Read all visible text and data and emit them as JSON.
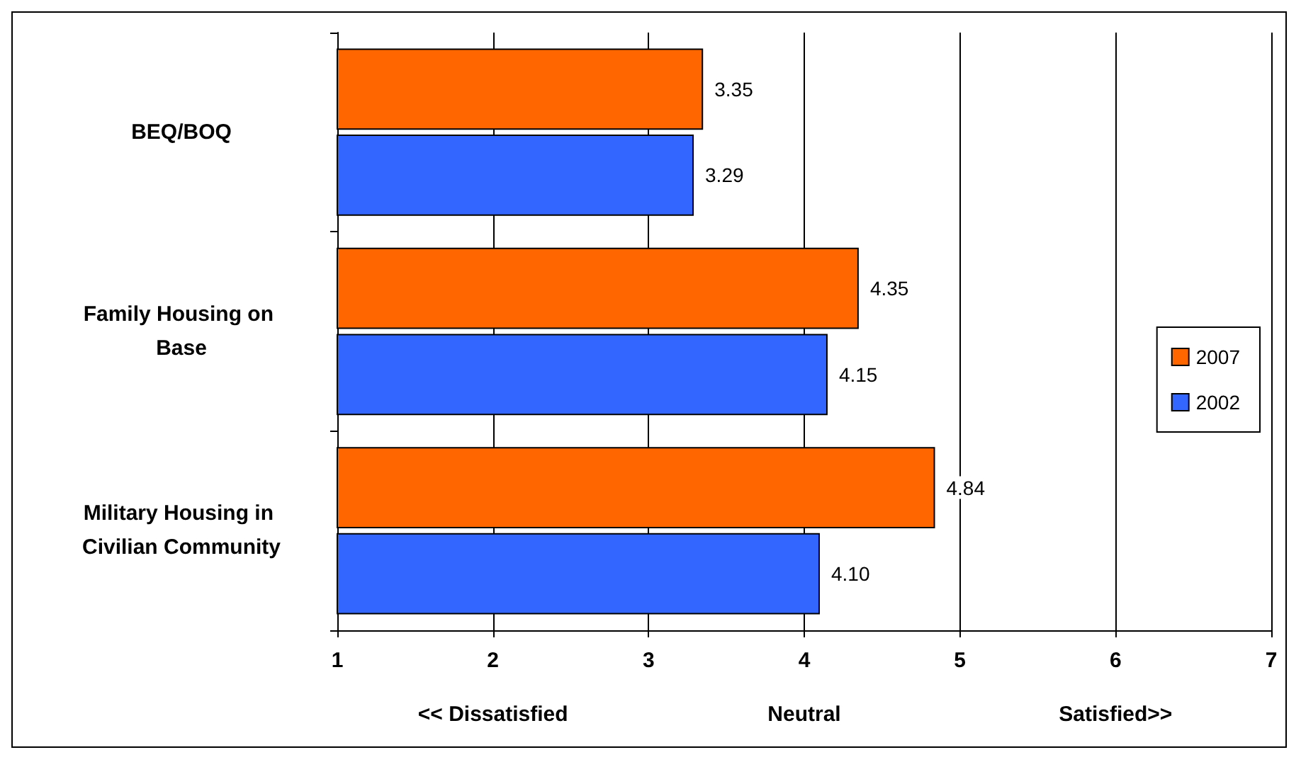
{
  "chart_data": {
    "type": "bar",
    "orientation": "horizontal",
    "categories": [
      "BEQ/BOQ",
      "Family Housing on Base",
      "Military Housing in Civilian Community"
    ],
    "series": [
      {
        "name": "2007",
        "color": "#ff6600",
        "values": [
          3.35,
          4.35,
          4.84
        ],
        "value_labels": [
          "3.35",
          "4.35",
          "4.84"
        ]
      },
      {
        "name": "2002",
        "color": "#3366ff",
        "values": [
          3.29,
          4.15,
          4.1
        ],
        "value_labels": [
          "3.29",
          "4.15",
          "4.10"
        ]
      }
    ],
    "xlim": [
      1,
      7
    ],
    "xticks": [
      1,
      2,
      3,
      4,
      5,
      6,
      7
    ],
    "grid": "x",
    "legend": "right",
    "annotations": [
      "<< Dissatisfied",
      "Neutral",
      "Satisfied>>"
    ]
  }
}
